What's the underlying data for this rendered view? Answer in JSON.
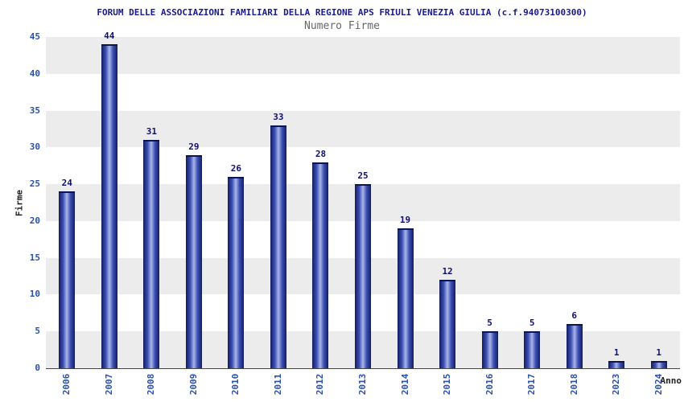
{
  "chart_data": {
    "type": "bar",
    "title": "FORUM DELLE ASSOCIAZIONI FAMILIARI DELLA REGIONE APS FRIULI VENEZIA GIULIA (c.f.94073100300)",
    "subtitle": "Numero Firme",
    "xlabel": "Anno",
    "ylabel": "Firme",
    "categories": [
      "2006",
      "2007",
      "2008",
      "2009",
      "2010",
      "2011",
      "2012",
      "2013",
      "2014",
      "2015",
      "2016",
      "2017",
      "2018",
      "2023",
      "2024"
    ],
    "values": [
      24,
      44,
      31,
      29,
      26,
      33,
      28,
      25,
      19,
      12,
      5,
      5,
      6,
      1,
      1
    ],
    "ylim": [
      0,
      45
    ],
    "ytick_step": 5,
    "yticks": [
      0,
      5,
      10,
      15,
      20,
      25,
      30,
      35,
      40,
      45
    ],
    "grid": "alternating horizontal bands every 5 units",
    "legend": "none",
    "colors": {
      "title": "#1a1a8f",
      "subtitle": "#666666",
      "tick_label": "#2a50a8",
      "value_label": "#101070",
      "axis_title": "#222222",
      "axis_line": "#444444",
      "band_gray": "#ececec",
      "band_white": "#ffffff",
      "bar_edge": "#131c60",
      "bar_body": "#3d51b5",
      "bar_mid": "#aab6ea",
      "bar_cap": "#0d1550"
    }
  }
}
